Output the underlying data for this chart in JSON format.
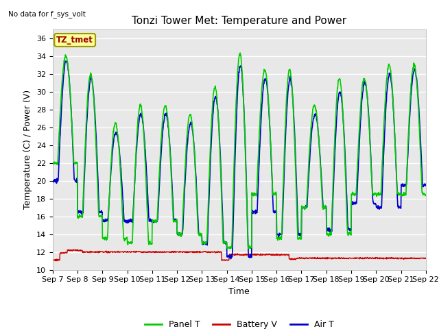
{
  "title": "Tonzi Tower Met: Temperature and Power",
  "no_data_text": "No data for f_sys_volt",
  "ylabel": "Temperature (C) / Power (V)",
  "xlabel": "Time",
  "ylim": [
    10,
    37
  ],
  "yticks": [
    10,
    12,
    14,
    16,
    18,
    20,
    22,
    24,
    26,
    28,
    30,
    32,
    34,
    36
  ],
  "xtick_labels": [
    "Sep 7",
    "Sep 8",
    "Sep 9",
    "Sep 10",
    "Sep 11",
    "Sep 12",
    "Sep 13",
    "Sep 14",
    "Sep 15",
    "Sep 16",
    "Sep 17",
    "Sep 18",
    "Sep 19",
    "Sep 20",
    "Sep 21",
    "Sep 22"
  ],
  "panel_color": "#00cc00",
  "battery_color": "#cc0000",
  "air_color": "#0000cc",
  "legend_box_facecolor": "#ffff99",
  "legend_box_edgecolor": "#999900",
  "annotation_text": "TZ_tmet",
  "bg_color": "#e8e8e8",
  "grid_color": "#ffffff",
  "title_fontsize": 11,
  "axis_label_fontsize": 9,
  "tick_fontsize": 8,
  "legend_fontsize": 9,
  "n_days": 15,
  "day_peaks_panel": [
    34,
    32,
    26.5,
    28.5,
    28.5,
    27.5,
    30.5,
    34.3,
    32.5,
    32.5,
    28.5,
    31.5,
    31.5,
    33,
    33
  ],
  "day_mins_panel": [
    22,
    16,
    13.5,
    13,
    15.5,
    14,
    13,
    12.5,
    18.5,
    13.5,
    17,
    14,
    18.5,
    18.5,
    18.5
  ],
  "day_peaks_air": [
    33.5,
    31.5,
    25.5,
    27.5,
    27.5,
    26.5,
    29.5,
    33,
    31.5,
    31.5,
    27.5,
    30,
    31,
    32,
    32.5
  ],
  "day_mins_air": [
    20,
    16.5,
    15.5,
    15.5,
    15.5,
    14,
    13,
    11.5,
    16.5,
    14,
    17,
    14.5,
    17.5,
    17,
    19.5
  ],
  "battery_base": 11.8,
  "battery_early_high": 12.2,
  "battery_mid": 12.0,
  "battery_late": 11.3
}
